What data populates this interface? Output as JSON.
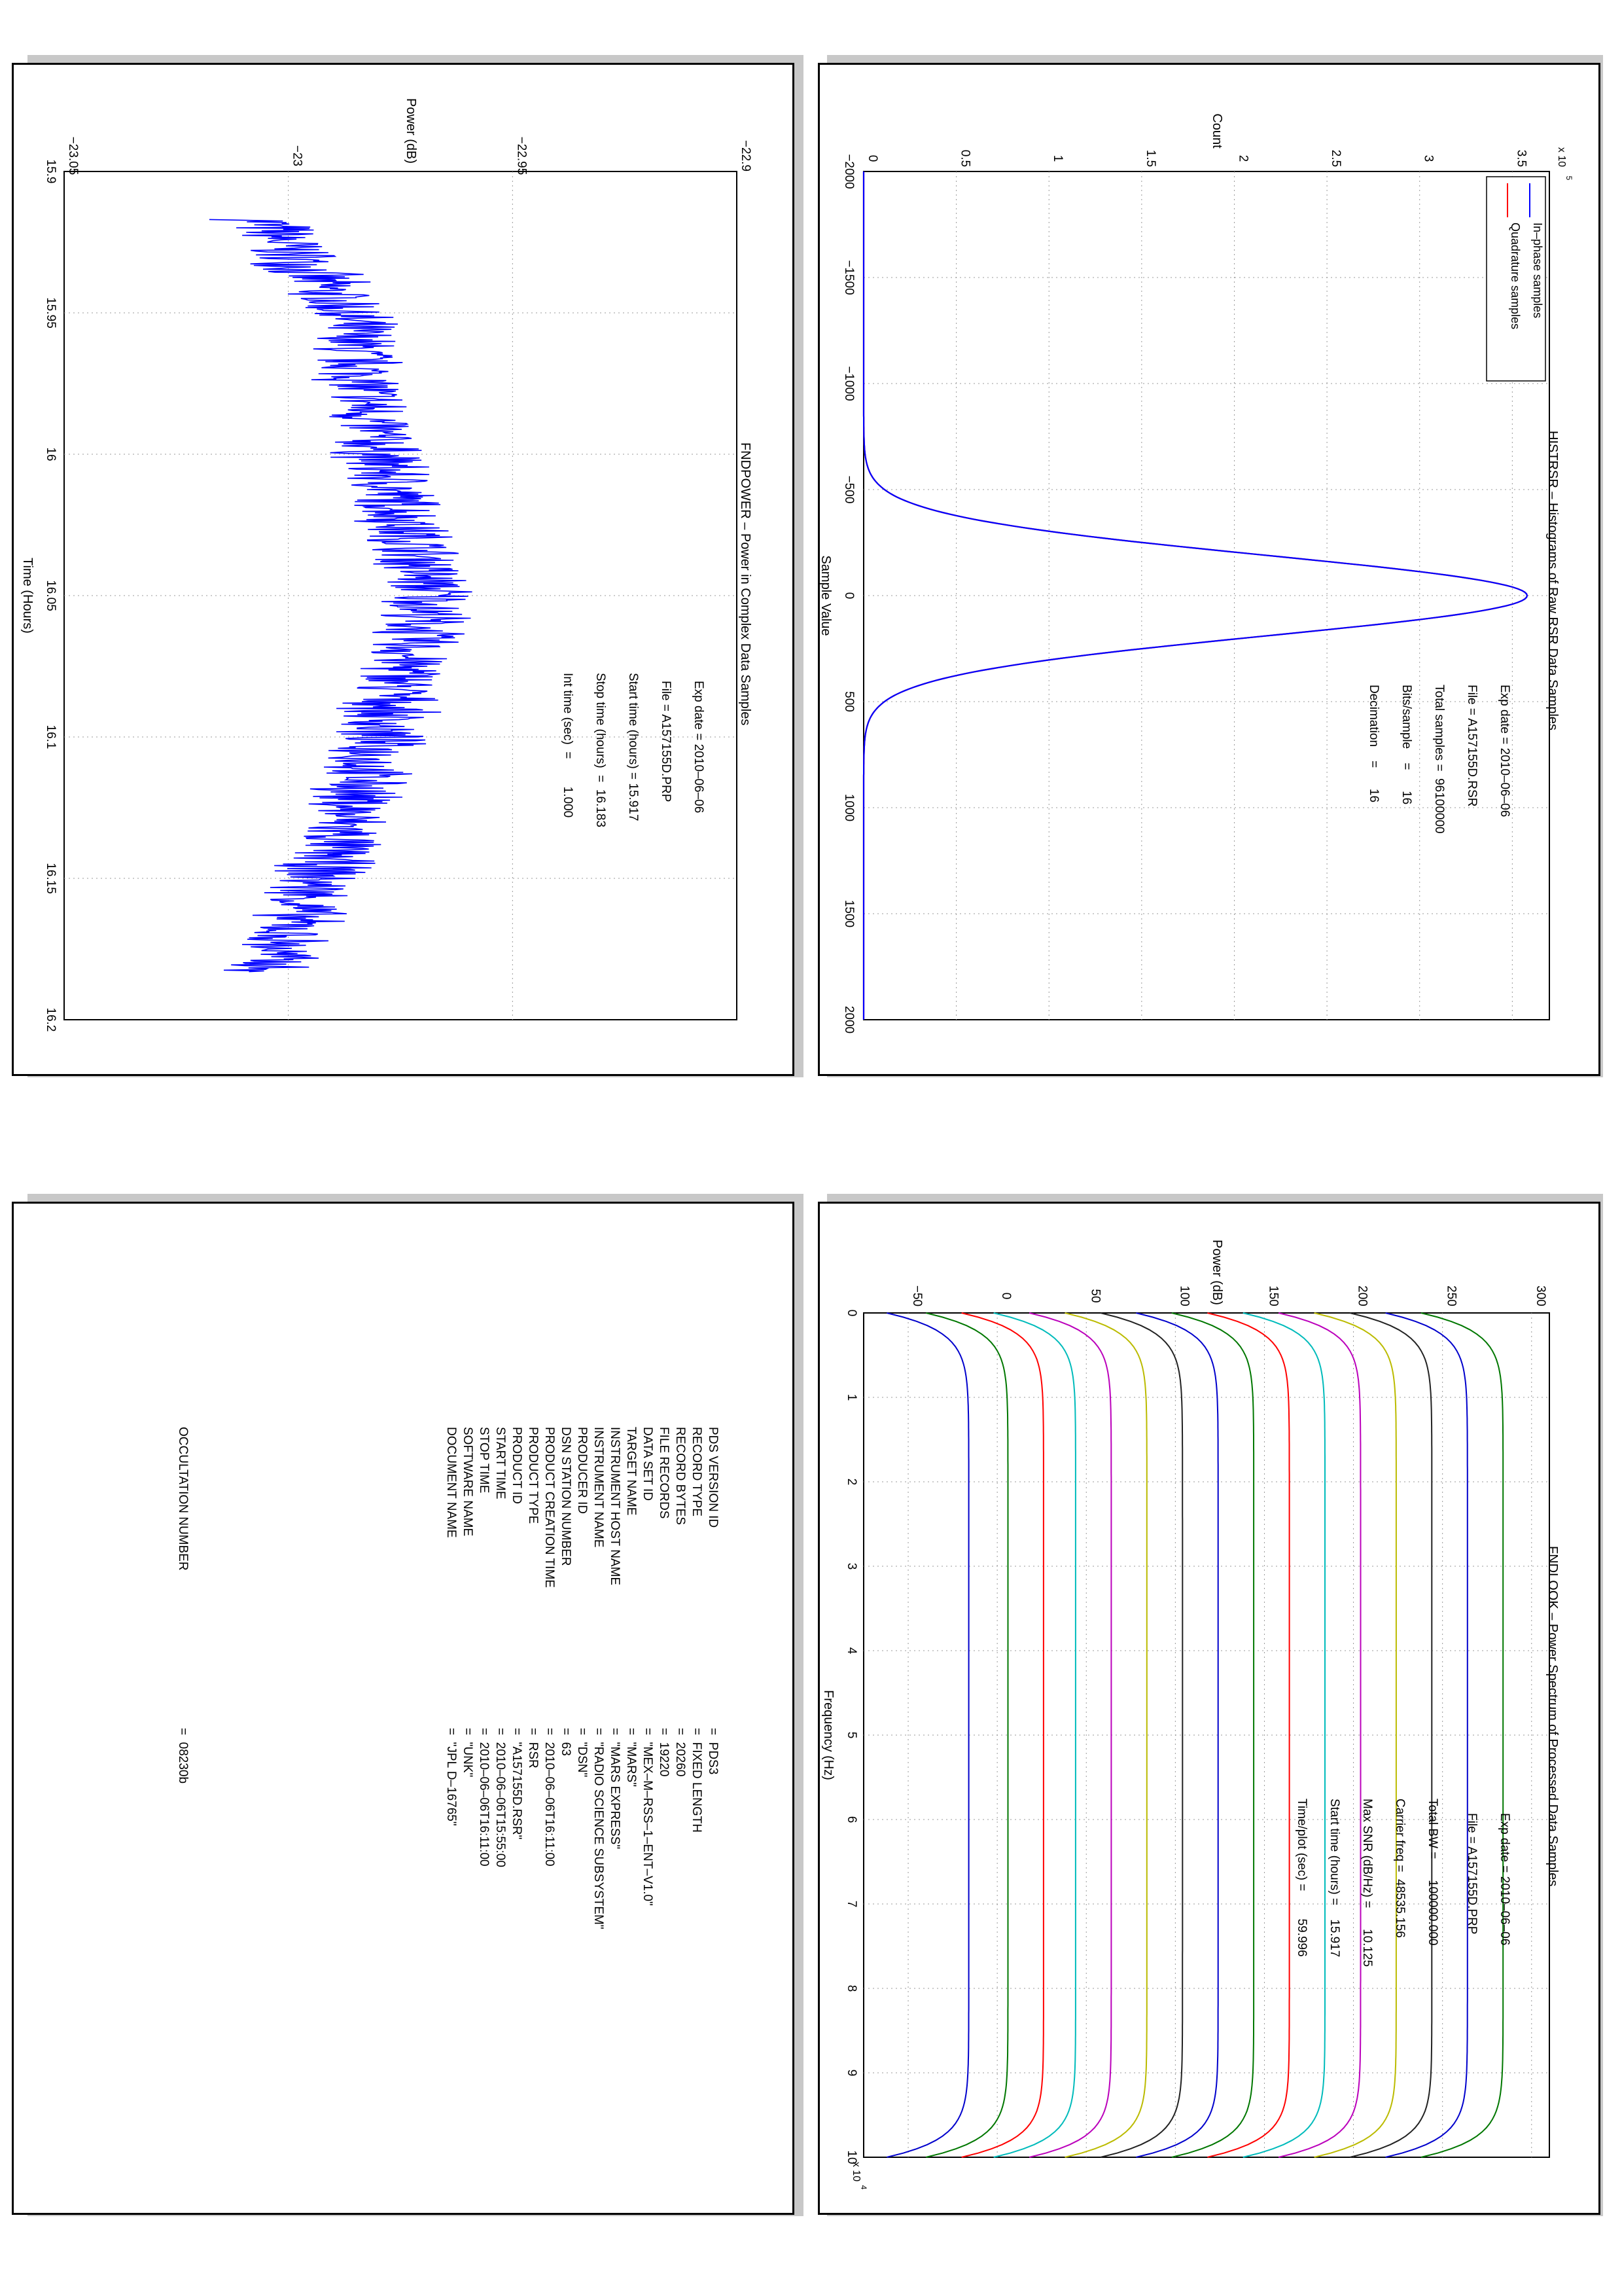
{
  "chart_data": [
    {
      "type": "line",
      "panel": "histogram",
      "title": "HISTRSR – Histograms of Raw RSR Data Samples",
      "xlabel": "Sample Value",
      "ylabel": "Count",
      "y_multiplier": "x 10",
      "y_multiplier_exp": "5",
      "xlim": [
        -2000,
        2000
      ],
      "ylim": [
        0,
        3.7
      ],
      "x_ticks": [
        "−2000",
        "−1500",
        "−1000",
        "−500",
        "0",
        "500",
        "1000",
        "1500",
        "2000"
      ],
      "y_ticks": [
        "0",
        "0.5",
        "1",
        "1.5",
        "2",
        "2.5",
        "3",
        "3.5"
      ],
      "grid": true,
      "legend_position": "top-left",
      "series": [
        {
          "name": "In–phase samples",
          "color": "#0000ff",
          "peak": 3.58,
          "center": 0,
          "sigma": 190
        },
        {
          "name": "Quadrature samples",
          "color": "#ff0000",
          "peak": 3.58,
          "center": 0,
          "sigma": 190
        }
      ],
      "annotations": [
        "Exp date = 2010–06–06",
        "File = A157155D.RSR",
        "Total samples =  96100000",
        "Bits/sample    =      16",
        "Decimation    =      16"
      ]
    },
    {
      "type": "line",
      "panel": "power",
      "title": "FNDPOWER – Power in Complex Data Samples",
      "xlabel": "Time (Hours)",
      "ylabel": "Power (dB)",
      "xlim": [
        15.9,
        16.2
      ],
      "ylim": [
        -23.05,
        -22.9
      ],
      "x_ticks": [
        "15.9",
        "15.95",
        "16",
        "16.05",
        "16.1",
        "16.15",
        "16.2"
      ],
      "y_ticks": [
        "−23.05",
        "−23",
        "−22.95",
        "−22.9"
      ],
      "grid": true,
      "series": [
        {
          "name": "",
          "color": "#0000ff",
          "x_start": 15.917,
          "x_end": 16.183,
          "trend_x": [
            15.917,
            15.95,
            16.0,
            16.05,
            16.1,
            16.14,
            16.183
          ],
          "trend_y": [
            -23.006,
            -22.987,
            -22.98,
            -22.968,
            -22.98,
            -22.99,
            -23.005
          ],
          "spread": 0.012
        }
      ],
      "annotations": [
        "Exp date = 2010–06–06",
        "File = A157155D.PRP",
        "Start time (hours) = 15.917",
        "Stop time (hours)  =  16.183",
        "Int time (sec)  =        1.000"
      ]
    },
    {
      "type": "line",
      "panel": "spectrum",
      "title": "FNDLOOK – Power Spectrum of Processed Data Samples",
      "xlabel": "Frequency (Hz)",
      "ylabel": "Power (dB)",
      "x_multiplier": "x 10",
      "x_multiplier_exp": "4",
      "xlim": [
        0,
        10
      ],
      "ylim": [
        -75,
        310
      ],
      "x_ticks": [
        "0",
        "1",
        "2",
        "3",
        "4",
        "5",
        "6",
        "7",
        "8",
        "9",
        "10"
      ],
      "y_ticks": [
        "−50",
        "0",
        "50",
        "100",
        "150",
        "200",
        "250",
        "300"
      ],
      "grid": true,
      "series": [
        {
          "name": "",
          "color": "#0000cc",
          "level": -62
        },
        {
          "name": "",
          "color": "#007700",
          "level": -40
        },
        {
          "name": "",
          "color": "#ff0000",
          "level": -20
        },
        {
          "name": "",
          "color": "#00bbbb",
          "level": -2
        },
        {
          "name": "",
          "color": "#bb00bb",
          "level": 18
        },
        {
          "name": "",
          "color": "#bbbb00",
          "level": 38
        },
        {
          "name": "",
          "color": "#222222",
          "level": 58
        },
        {
          "name": "",
          "color": "#0000cc",
          "level": 78
        },
        {
          "name": "",
          "color": "#007700",
          "level": 98
        },
        {
          "name": "",
          "color": "#ff0000",
          "level": 118
        },
        {
          "name": "",
          "color": "#00bbbb",
          "level": 138
        },
        {
          "name": "",
          "color": "#bb00bb",
          "level": 158
        },
        {
          "name": "",
          "color": "#bbbb00",
          "level": 178
        },
        {
          "name": "",
          "color": "#222222",
          "level": 198
        },
        {
          "name": "",
          "color": "#0000cc",
          "level": 218
        },
        {
          "name": "",
          "color": "#007700",
          "level": 238
        }
      ],
      "annotations": [
        "Exp date = 2010–06–06",
        "File = A157155D.PRP",
        "Total BW =      100000.000",
        "Carrier freq =  48535.156",
        "Max SNR (dB/Hz) =      10.125",
        "Start time (hours) =    15.917",
        "Time/plot (sec) =        59.996"
      ]
    }
  ],
  "label_table": {
    "rows": [
      {
        "key": "PDS VERSION ID",
        "value": "=  PDS3"
      },
      {
        "key": "RECORD TYPE",
        "value": "=  FIXED LENGTH"
      },
      {
        "key": "RECORD BYTES",
        "value": "=  20260"
      },
      {
        "key": "FILE RECORDS",
        "value": "=  19220"
      },
      {
        "key": "DATA SET ID",
        "value": "=  \"MEX–M–RSS–1–ENT–V1.0\""
      },
      {
        "key": "TARGET NAME",
        "value": "=  \"MARS\""
      },
      {
        "key": "INSTRUMENT HOST NAME",
        "value": "=  \"MARS EXPRESS\""
      },
      {
        "key": "INSTRUMENT NAME",
        "value": "=  \"RADIO SCIENCE SUBSYSTEM\""
      },
      {
        "key": "PRODUCER ID",
        "value": "=  \"DSN\""
      },
      {
        "key": "DSN STATION NUMBER",
        "value": "=  63"
      },
      {
        "key": "PRODUCT CREATION TIME",
        "value": "=  2010–06–06T16:11:00"
      },
      {
        "key": "PRODUCT TYPE",
        "value": "=  RSR"
      },
      {
        "key": "PRODUCT ID",
        "value": "=  \"A157155D.RSR\""
      },
      {
        "key": "START TIME",
        "value": "=  2010–06–06T15:55:00"
      },
      {
        "key": "STOP TIME",
        "value": "=  2010–06–06T16:11:00"
      },
      {
        "key": "SOFTWARE NAME",
        "value": "=  \"UNK\""
      },
      {
        "key": "DOCUMENT NAME",
        "value": "=  \"JPL D–16765\""
      }
    ],
    "extra": {
      "key": "OCCULTATION NUMBER",
      "value": "=  08230b"
    }
  }
}
